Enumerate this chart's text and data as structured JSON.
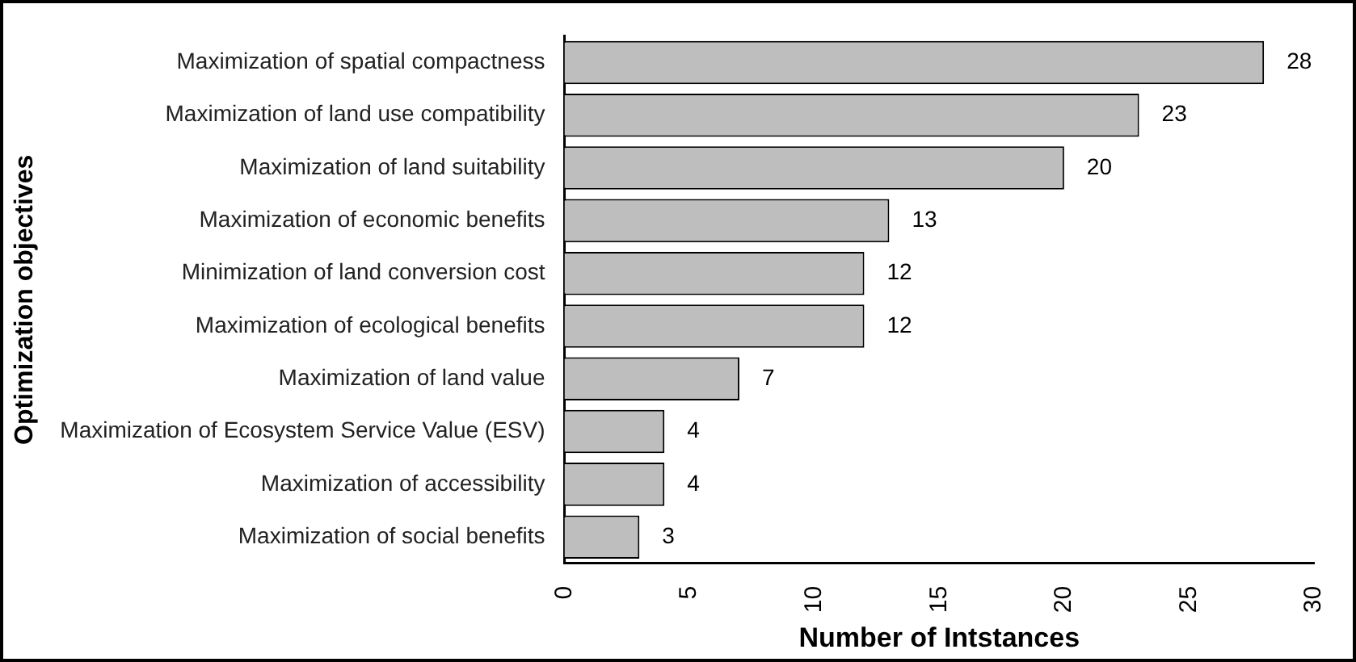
{
  "chart_data": {
    "type": "bar",
    "orientation": "horizontal",
    "xlabel": "Number of Intstances",
    "ylabel": "Optimization objectives",
    "categories": [
      "Maximization of spatial compactness",
      "Maximization of land use compatibility",
      "Maximization of land suitability",
      "Maximization of economic benefits",
      "Minimization of land conversion cost",
      "Maximization of ecological benefits",
      "Maximization of land value",
      "Maximization of Ecosystem Service Value (ESV)",
      "Maximization of accessibility",
      "Maximization of social benefits"
    ],
    "values": [
      28,
      23,
      20,
      13,
      12,
      12,
      7,
      4,
      4,
      3
    ],
    "color": "#bebebe",
    "xlim": [
      0,
      30
    ],
    "xticks": [
      0,
      5,
      10,
      15,
      20,
      25,
      30
    ],
    "data_labels": true,
    "grid": false,
    "legend": false
  }
}
